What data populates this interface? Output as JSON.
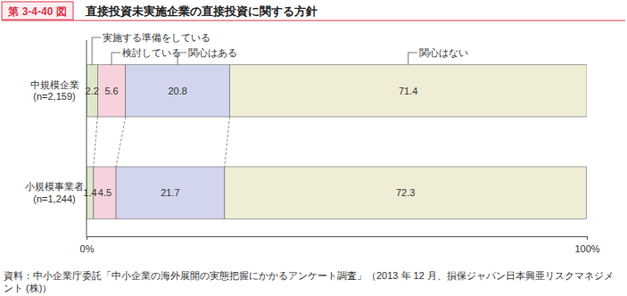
{
  "chart_data": {
    "type": "bar",
    "figure_label": "第 3-4-40 図",
    "title": "直接投資未実施企業の直接投資に関する方針",
    "source": "資料：中小企業庁委託「中小企業の海外展開の実態把握にかかるアンケート調査」（2013 年 12 月、損保ジャパン日本興亜リスクマネジメント (株)）",
    "categories": [
      "中規模企業\n(n=2,159)",
      "小規模事業者\n(n=1,244)"
    ],
    "series": [
      {
        "name": "実施する準備をしている",
        "color": "#dde9c9",
        "values": [
          2.2,
          1.4
        ]
      },
      {
        "name": "検討している",
        "color": "#f6d3dc",
        "values": [
          5.6,
          4.5
        ]
      },
      {
        "name": "関心はある",
        "color": "#d2d5ee",
        "values": [
          20.8,
          21.7
        ]
      },
      {
        "name": "関心はない",
        "color": "#efedd5",
        "values": [
          71.4,
          72.3
        ]
      }
    ],
    "xlim": [
      0,
      100
    ],
    "xticks": [
      {
        "value": 0,
        "label": "0%"
      },
      {
        "value": 100,
        "label": "100%"
      }
    ],
    "orientation": "horizontal",
    "stacked": true,
    "data_labels": true
  }
}
